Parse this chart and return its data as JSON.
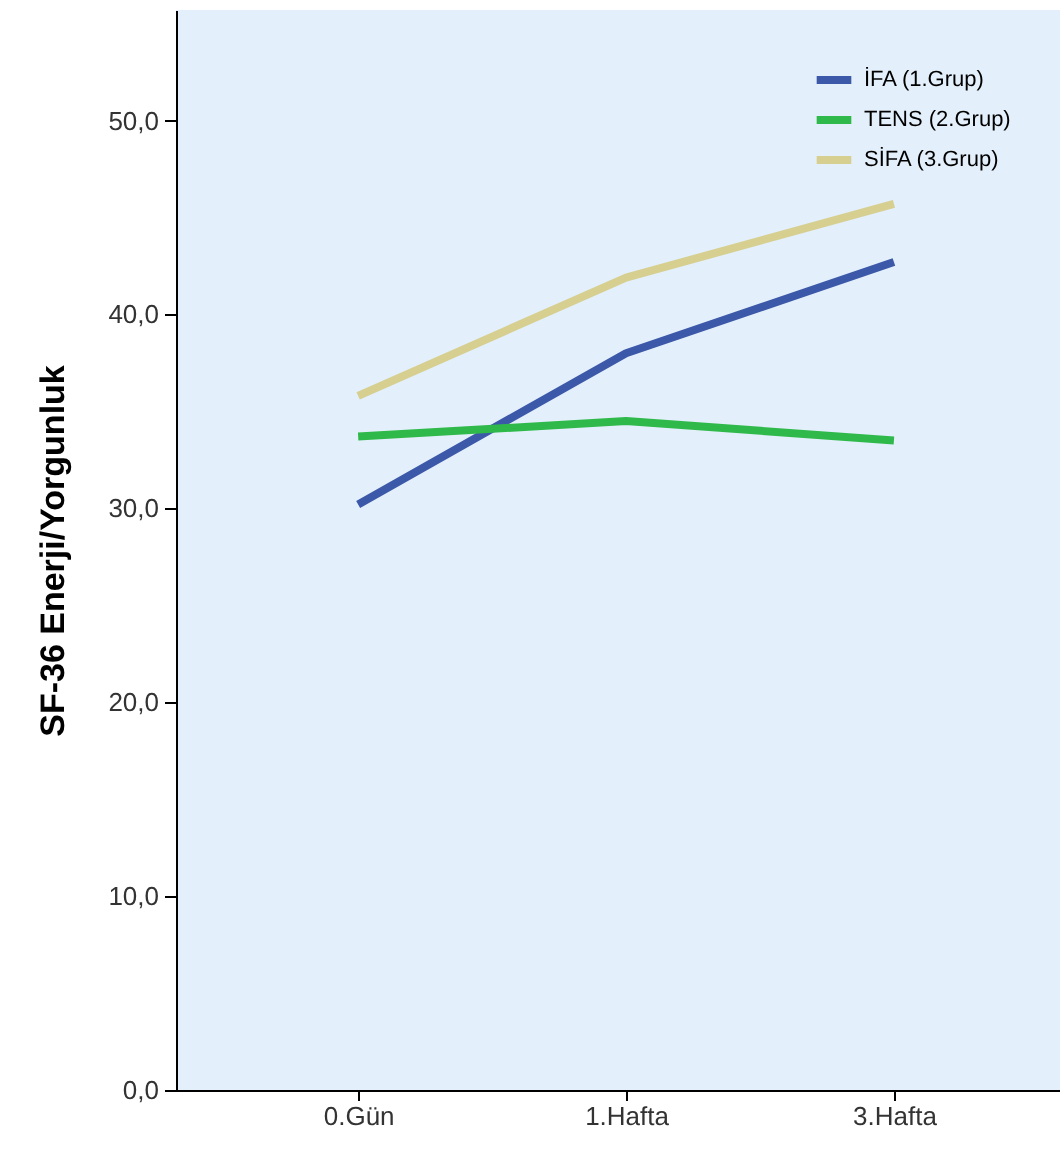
{
  "chart_data": {
    "type": "line",
    "ylabel": "SF-36 Enerji/Yorgunluk",
    "categories": [
      "0.Gün",
      "1.Hafta",
      "3.Hafta"
    ],
    "series": [
      {
        "name": "İFA (1.Grup)",
        "color": "#3c58a8",
        "values": [
          30.2,
          38.0,
          42.7
        ]
      },
      {
        "name": "TENS (2.Grup)",
        "color": "#2fb94a",
        "values": [
          33.7,
          34.5,
          33.5
        ]
      },
      {
        "name": "SİFA (3.Grup)",
        "color": "#d6cf8f",
        "values": [
          35.8,
          41.9,
          45.7
        ]
      }
    ],
    "ylim": [
      0,
      55.7
    ],
    "yticks": [
      {
        "value": 0,
        "label": "0,0"
      },
      {
        "value": 10,
        "label": "10,0"
      },
      {
        "value": 20,
        "label": "20,0"
      },
      {
        "value": 30,
        "label": "30,0"
      },
      {
        "value": 40,
        "label": "40,0"
      },
      {
        "value": 50,
        "label": "50,0"
      }
    ],
    "grid": false,
    "legend": "top right",
    "marker": "none",
    "line_style": "solid"
  }
}
